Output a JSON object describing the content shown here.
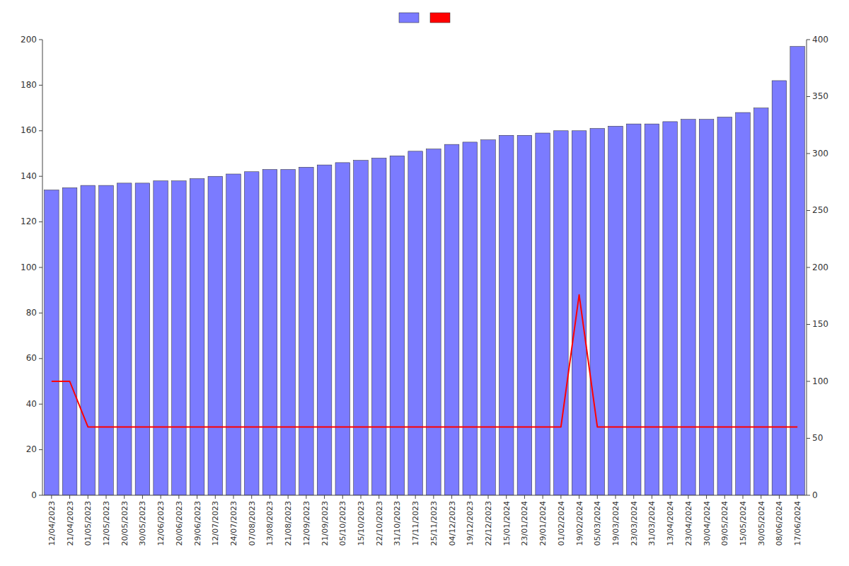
{
  "chart_data": {
    "type": "bar",
    "categories": [
      "12/04/2023",
      "21/04/2023",
      "01/05/2023",
      "12/05/2023",
      "20/05/2023",
      "30/05/2023",
      "12/06/2023",
      "20/06/2023",
      "29/06/2023",
      "12/07/2023",
      "24/07/2023",
      "07/08/2023",
      "13/08/2023",
      "21/08/2023",
      "12/09/2023",
      "21/09/2023",
      "05/10/2023",
      "15/10/2023",
      "22/10/2023",
      "31/10/2023",
      "17/11/2023",
      "25/11/2023",
      "04/12/2023",
      "19/12/2023",
      "22/12/2023",
      "15/01/2024",
      "23/01/2024",
      "29/01/2024",
      "01/02/2024",
      "19/02/2024",
      "05/03/2024",
      "19/03/2024",
      "23/03/2024",
      "31/03/2024",
      "13/04/2024",
      "23/04/2024",
      "30/04/2024",
      "09/05/2024",
      "15/05/2024",
      "30/05/2024",
      "08/06/2024",
      "17/06/2024"
    ],
    "series": [
      {
        "type": "bar",
        "color": "#7B7BFF",
        "values": [
          134,
          135,
          136,
          136,
          137,
          137,
          138,
          138,
          139,
          140,
          141,
          142,
          143,
          143,
          144,
          145,
          146,
          147,
          148,
          149,
          151,
          152,
          154,
          155,
          156,
          158,
          158,
          159,
          160,
          160,
          161,
          162,
          163,
          163,
          164,
          165,
          165,
          166,
          168,
          170,
          182,
          197
        ]
      },
      {
        "type": "line",
        "color": "#FF0000",
        "values": [
          50,
          50,
          30,
          30,
          30,
          30,
          30,
          30,
          30,
          30,
          30,
          30,
          30,
          30,
          30,
          30,
          30,
          30,
          30,
          30,
          30,
          30,
          30,
          30,
          30,
          30,
          30,
          30,
          30,
          88,
          30,
          30,
          30,
          30,
          30,
          30,
          30,
          30,
          30,
          30,
          30,
          30
        ]
      }
    ],
    "ylim": [
      0,
      200
    ],
    "yticks": [
      0,
      20,
      40,
      60,
      80,
      100,
      120,
      140,
      160,
      180,
      200
    ],
    "y2lim": [
      0,
      400
    ],
    "y2ticks": [
      0,
      50,
      100,
      150,
      200,
      250,
      300,
      350,
      400
    ],
    "grid": false,
    "legend": "top"
  }
}
